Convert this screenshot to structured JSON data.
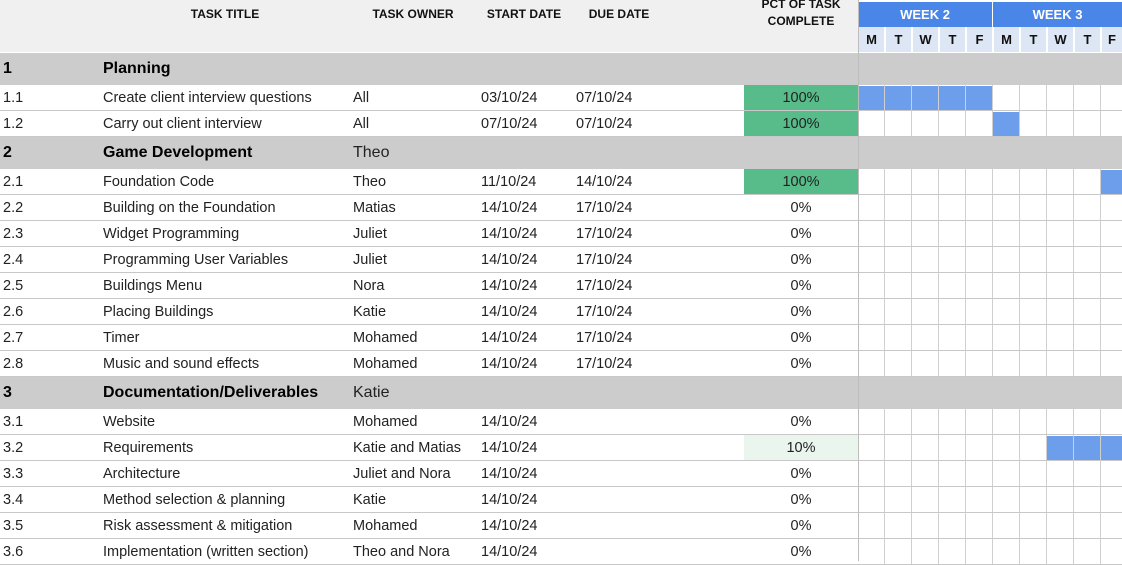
{
  "header": {
    "col_task_title": "TASK TITLE",
    "col_task_owner": "TASK OWNER",
    "col_start_date": "START DATE",
    "col_due_date": "DUE DATE",
    "col_pct_line1": "PCT OF TASK",
    "col_pct_line2": "COMPLETE",
    "weeks": [
      "WEEK 2",
      "WEEK 3"
    ],
    "days": [
      "M",
      "T",
      "W",
      "T",
      "F",
      "M",
      "T",
      "W",
      "T",
      "F"
    ]
  },
  "colors": {
    "complete_green": "#57bb8a",
    "light_green": "#eaf5ee",
    "week_header_blue": "#4a86e8",
    "gantt_bar_blue": "#6d9eeb",
    "section_grey": "#cccccc"
  },
  "rows": [
    {
      "kind": "section",
      "num": "1",
      "title": "Planning",
      "owner": "",
      "start": "",
      "due": "",
      "pct": ""
    },
    {
      "kind": "task",
      "num": "1.1",
      "title": "Create client interview questions",
      "owner": "All",
      "start": "03/10/24",
      "due": "07/10/24",
      "pct": "100%",
      "gantt_days": [
        0,
        1,
        2,
        3,
        4
      ]
    },
    {
      "kind": "task",
      "num": "1.2",
      "title": "Carry out client interview",
      "owner": "All",
      "start": "07/10/24",
      "due": "07/10/24",
      "pct": "100%",
      "gantt_days": [
        5
      ]
    },
    {
      "kind": "section",
      "num": "2",
      "title": "Game Development",
      "owner": "Theo",
      "start": "",
      "due": "",
      "pct": ""
    },
    {
      "kind": "task",
      "num": "2.1",
      "title": "Foundation Code",
      "owner": "Theo",
      "start": "11/10/24",
      "due": "14/10/24",
      "pct": "100%",
      "gantt_days": [
        9
      ]
    },
    {
      "kind": "task",
      "num": "2.2",
      "title": "Building on the Foundation",
      "owner": "Matias",
      "start": "14/10/24",
      "due": "17/10/24",
      "pct": "0%",
      "gantt_days": []
    },
    {
      "kind": "task",
      "num": "2.3",
      "title": "Widget Programming",
      "owner": "Juliet",
      "start": "14/10/24",
      "due": "17/10/24",
      "pct": "0%",
      "gantt_days": []
    },
    {
      "kind": "task",
      "num": "2.4",
      "title": "Programming User Variables",
      "owner": "Juliet",
      "start": "14/10/24",
      "due": "17/10/24",
      "pct": "0%",
      "gantt_days": []
    },
    {
      "kind": "task",
      "num": "2.5",
      "title": "Buildings Menu",
      "owner": "Nora",
      "start": "14/10/24",
      "due": "17/10/24",
      "pct": "0%",
      "gantt_days": []
    },
    {
      "kind": "task",
      "num": "2.6",
      "title": "Placing Buildings",
      "owner": "Katie",
      "start": "14/10/24",
      "due": "17/10/24",
      "pct": "0%",
      "gantt_days": []
    },
    {
      "kind": "task",
      "num": "2.7",
      "title": "Timer",
      "owner": "Mohamed",
      "start": "14/10/24",
      "due": "17/10/24",
      "pct": "0%",
      "gantt_days": []
    },
    {
      "kind": "task",
      "num": "2.8",
      "title": "Music and sound effects",
      "owner": "Mohamed",
      "start": "14/10/24",
      "due": "17/10/24",
      "pct": "0%",
      "gantt_days": []
    },
    {
      "kind": "section",
      "num": "3",
      "title": "Documentation/Deliverables",
      "owner": "Katie",
      "start": "",
      "due": "",
      "pct": ""
    },
    {
      "kind": "task",
      "num": "3.1",
      "title": "Website",
      "owner": "Mohamed",
      "start": "14/10/24",
      "due": "",
      "pct": "0%",
      "gantt_days": []
    },
    {
      "kind": "task",
      "num": "3.2",
      "title": "Requirements",
      "owner": "Katie and Matias",
      "start": "14/10/24",
      "due": "",
      "pct": "10%",
      "gantt_days": [
        7,
        8,
        9
      ]
    },
    {
      "kind": "task",
      "num": "3.3",
      "title": "Architecture",
      "owner": "Juliet and Nora",
      "start": "14/10/24",
      "due": "",
      "pct": "0%",
      "gantt_days": []
    },
    {
      "kind": "task",
      "num": "3.4",
      "title": "Method selection & planning",
      "owner": "Katie",
      "start": "14/10/24",
      "due": "",
      "pct": "0%",
      "gantt_days": []
    },
    {
      "kind": "task",
      "num": "3.5",
      "title": "Risk assessment & mitigation",
      "owner": "Mohamed",
      "start": "14/10/24",
      "due": "",
      "pct": "0%",
      "gantt_days": []
    },
    {
      "kind": "task",
      "num": "3.6",
      "title": "Implementation (written section)",
      "owner": "Theo and Nora",
      "start": "14/10/24",
      "due": "",
      "pct": "0%",
      "gantt_days": []
    }
  ]
}
